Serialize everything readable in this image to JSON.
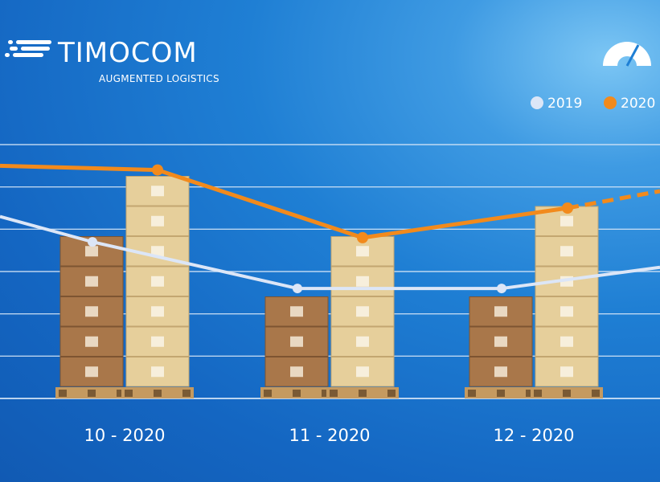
{
  "brand": {
    "name": "TIMOCOM",
    "tagline": "AUGMENTED LOGISTICS"
  },
  "legend": [
    {
      "label": "2019",
      "color": "#dce6f7"
    },
    {
      "label": "2020",
      "color": "#f28a1c"
    }
  ],
  "colors": {
    "series_2019": "#dce6f7",
    "series_2020": "#f28a1c",
    "gridline": "#d9e8f8",
    "box_2019": "#a9774a",
    "box_2020": "#e6cf9b",
    "pallet": "#c59a60"
  },
  "icons": {
    "logo": "speed-lines-icon",
    "gauge": "speedometer-icon"
  },
  "chart_data": {
    "type": "bar-line",
    "categories": [
      "10 - 2020",
      "11 - 2020",
      "12 - 2020"
    ],
    "grid": true,
    "ylim": [
      0,
      6
    ],
    "bars": [
      {
        "name": "2019",
        "values": [
          5,
          3,
          3
        ]
      },
      {
        "name": "2020",
        "values": [
          7,
          5,
          6
        ]
      }
    ],
    "series": [
      {
        "name": "2019",
        "values": [
          3.7,
          2.6,
          2.6
        ],
        "right_edge_value": 3.1
      },
      {
        "name": "2020",
        "values": [
          5.4,
          3.8,
          4.5
        ],
        "left_edge_value": 5.5,
        "right_edge_value": 4.9,
        "projected_segment": "dashed"
      }
    ]
  }
}
